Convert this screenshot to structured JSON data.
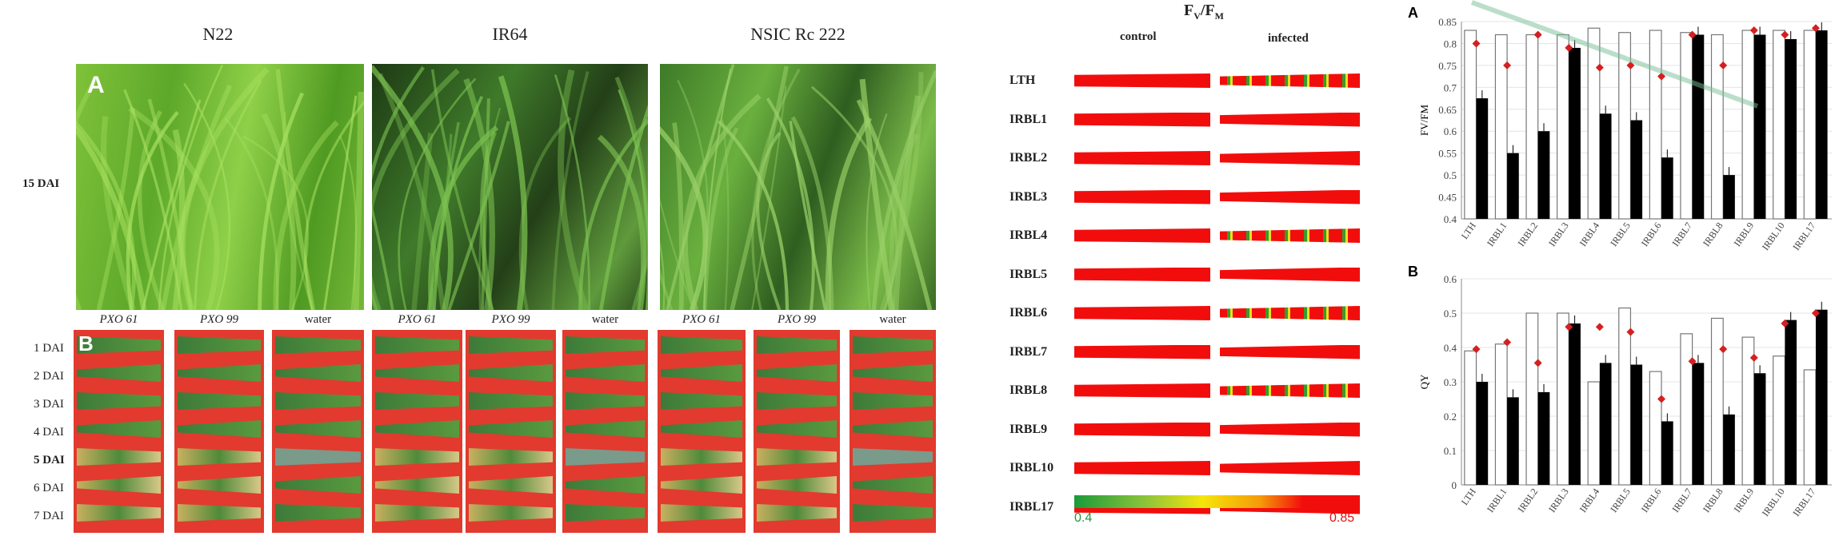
{
  "panel_a": {
    "letter": "A",
    "titles": [
      "N22",
      "IR64",
      "NSIC Rc 222"
    ],
    "row_label": "15 DAI"
  },
  "panel_b": {
    "letter": "B",
    "treatments": [
      "PXO 61",
      "PXO 99",
      "water",
      "PXO 61",
      "PXO 99",
      "water",
      "PXO 61",
      "PXO 99",
      "water"
    ],
    "days": [
      "1 DAI",
      "2 DAI",
      "3 DAI",
      "4 DAI",
      "5 DAI",
      "6 DAI",
      "7 DAI"
    ]
  },
  "imaging": {
    "title_main": "F",
    "title_sub1": "V",
    "title_slash": "/F",
    "title_sub2": "M",
    "control_label": "control",
    "infected_label": "infected",
    "lines": [
      "LTH",
      "IRBL1",
      "IRBL2",
      "IRBL3",
      "IRBL4",
      "IRBL5",
      "IRBL6",
      "IRBL7",
      "IRBL8",
      "IRBL9",
      "IRBL10",
      "IRBL17"
    ],
    "scale_min": "0.4",
    "scale_max": "0.85",
    "colors": {
      "low": "#1a9a3a",
      "mid": "#f5e60a",
      "high": "#f20d0d"
    }
  },
  "chart_data": [
    {
      "type": "bar",
      "panel": "A",
      "ylabel": "FV/FM",
      "ylim": [
        0.4,
        0.85
      ],
      "yticks": [
        "0.4",
        "0.45",
        "0.5",
        "0.55",
        "0.6",
        "0.65",
        "0.7",
        "0.75",
        "0.8",
        "0.85"
      ],
      "categories": [
        "LTH",
        "IRBL1",
        "IRBL2",
        "IRBL3",
        "IRBL4",
        "IRBL5",
        "IRBL6",
        "IRBL7",
        "IRBL8",
        "IRBL9",
        "IRBL10",
        "IRBL17"
      ],
      "series": [
        {
          "name": "control",
          "color": "#ffffff",
          "values": [
            0.83,
            0.82,
            0.82,
            0.82,
            0.835,
            0.825,
            0.83,
            0.825,
            0.82,
            0.83,
            0.83,
            0.83
          ]
        },
        {
          "name": "infected",
          "color": "#000000",
          "values": [
            0.675,
            0.55,
            0.6,
            0.79,
            0.64,
            0.625,
            0.54,
            0.82,
            0.5,
            0.82,
            0.81,
            0.83
          ]
        },
        {
          "name": "marker",
          "color": "#d42020",
          "values": [
            0.8,
            0.75,
            0.82,
            0.79,
            0.745,
            0.75,
            0.725,
            0.82,
            0.75,
            0.83,
            0.82,
            0.835
          ]
        }
      ],
      "grid": true
    },
    {
      "type": "bar",
      "panel": "B",
      "ylabel": "QY",
      "ylim": [
        0,
        0.6
      ],
      "yticks": [
        "0",
        "0.1",
        "0.2",
        "0.3",
        "0.4",
        "0.5",
        "0.6"
      ],
      "categories": [
        "LTH",
        "IRBL1",
        "IRBL2",
        "IRBL3",
        "IRBL4",
        "IRBL5",
        "IRBL6",
        "IRBL7",
        "IRBL8",
        "IRBL9",
        "IRBL10",
        "IRBL17"
      ],
      "series": [
        {
          "name": "control",
          "color": "#ffffff",
          "values": [
            0.39,
            0.41,
            0.5,
            0.5,
            0.3,
            0.515,
            0.33,
            0.44,
            0.485,
            0.43,
            0.375,
            0.335
          ]
        },
        {
          "name": "infected",
          "color": "#000000",
          "values": [
            0.3,
            0.255,
            0.27,
            0.47,
            0.355,
            0.35,
            0.185,
            0.355,
            0.205,
            0.325,
            0.48,
            0.51
          ]
        },
        {
          "name": "marker",
          "color": "#d42020",
          "values": [
            0.395,
            0.415,
            0.355,
            0.46,
            0.46,
            0.445,
            0.25,
            0.36,
            0.395,
            0.37,
            0.47,
            0.5
          ]
        }
      ],
      "grid": true
    }
  ]
}
